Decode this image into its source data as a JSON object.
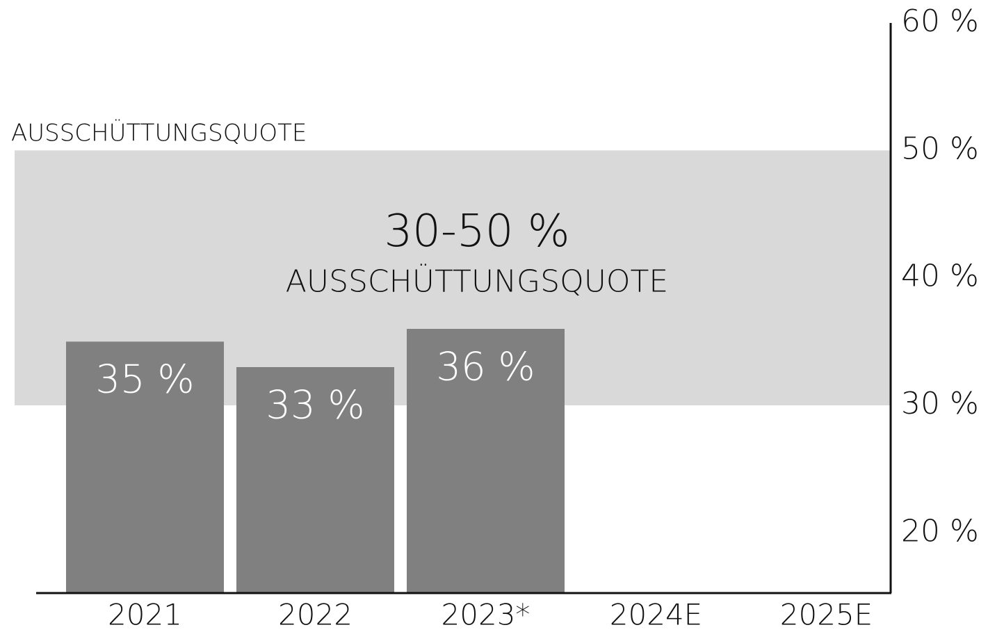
{
  "chart_data": {
    "type": "bar",
    "title": "AUSSCHÜTTUNGSQUOTE",
    "categories": [
      "2021",
      "2022",
      "2023*",
      "2024E",
      "2025E"
    ],
    "values": [
      35,
      33,
      36,
      null,
      null
    ],
    "value_labels": [
      "35 %",
      "33 %",
      "36 %",
      null,
      null
    ],
    "color": "#808080",
    "ylim": [
      15,
      60
    ],
    "yticks": [
      {
        "value": 20,
        "label": "20 %"
      },
      {
        "value": 30,
        "label": "30 %"
      },
      {
        "value": 40,
        "label": "40 %"
      },
      {
        "value": 50,
        "label": "50 %"
      },
      {
        "value": 60,
        "label": "60 %"
      }
    ],
    "band": {
      "range": [
        30,
        50
      ],
      "label": "30-50 %",
      "sublabel": "AUSSCHÜTTUNGSQUOTE",
      "color": "#d9d9d9"
    }
  }
}
